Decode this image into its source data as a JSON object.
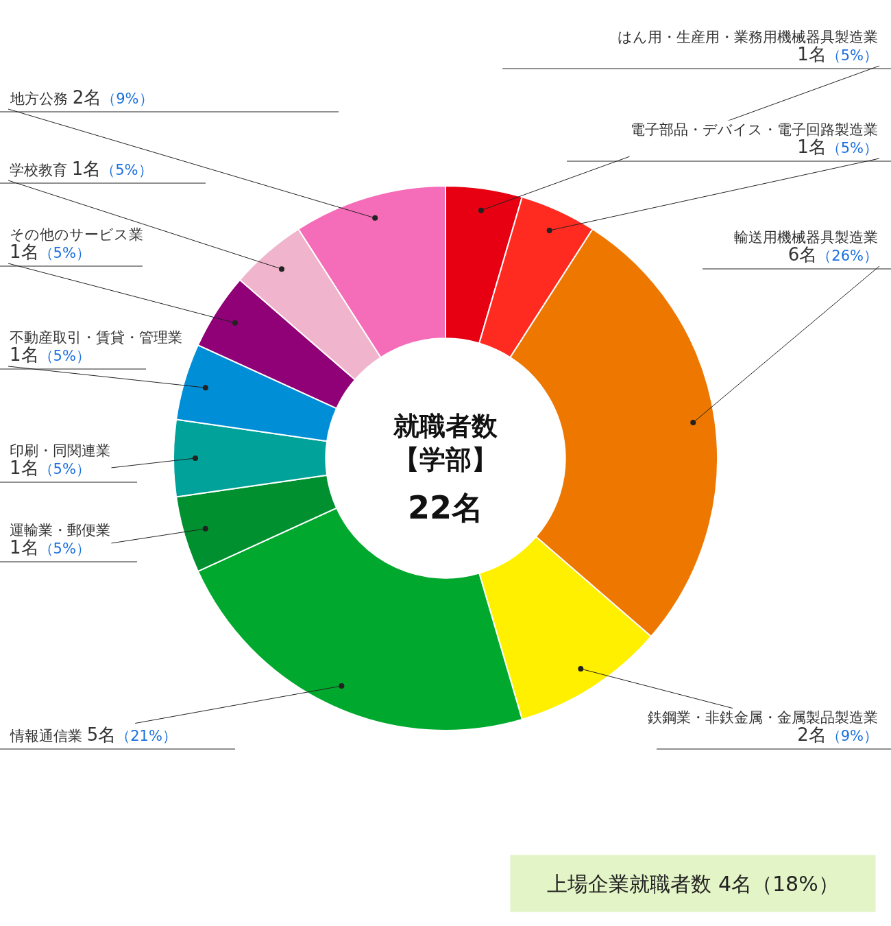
{
  "chart_data": {
    "type": "donut",
    "title": "就職者数",
    "subtitle": "【学部】",
    "categories": [
      "はん用・生産用・業務用機械器具製造業",
      "電子部品・デバイス・電子回路製造業",
      "輸送用機械器具製造業",
      "鉄鋼業・非鉄金属・金属製品製造業",
      "情報通信業",
      "運輸業・郵便業",
      "印刷・同関連業",
      "不動産取引・賃貸・管理業",
      "その他のサービス業",
      "学校教育",
      "地方公務"
    ],
    "values": [
      1,
      1,
      6,
      2,
      5,
      1,
      1,
      1,
      1,
      1,
      2
    ],
    "colors": [
      "#e60012",
      "#ff2a20",
      "#ee7700",
      "#fff000",
      "#00a82d",
      "#00902f",
      "#00a29a",
      "#008fd7",
      "#900077",
      "#f0b4cc",
      "#f56cb8"
    ],
    "value_labels": [
      "1名（5%）",
      "1名（5%）",
      "6名（26%）",
      "2名（9%）",
      "5名（21%）",
      "1名（5%）",
      "1名（5%）",
      "1名（5%）",
      "1名（5%）",
      "1名（5%）",
      "2名（9%）"
    ],
    "annotations": [
      "22名",
      "上場企業就職者数 4名（18%）"
    ]
  }
}
